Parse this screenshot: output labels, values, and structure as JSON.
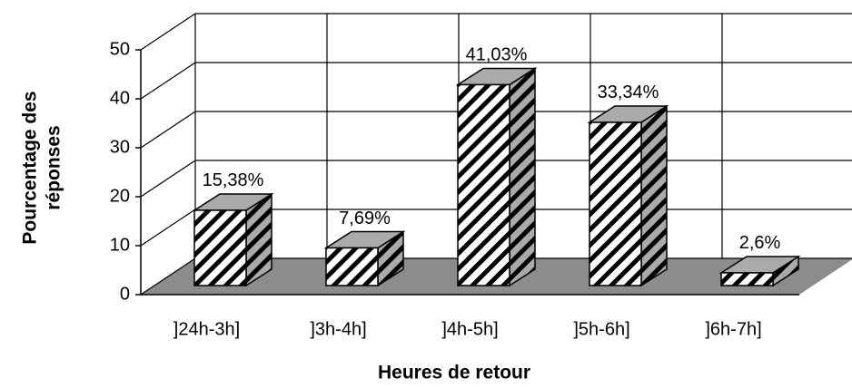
{
  "chart_data": {
    "type": "bar3d",
    "categories": [
      "]24h-3h]",
      "]3h-4h]",
      "]4h-5h]",
      "]5h-6h]",
      "]6h-7h]"
    ],
    "values": [
      15.38,
      7.69,
      41.03,
      33.34,
      2.6
    ],
    "value_labels": [
      "15,38%",
      "7,69%",
      "41,03%",
      "33,34%",
      "2,6%"
    ],
    "ylim": [
      0,
      50
    ],
    "yticks": [
      0,
      10,
      20,
      30,
      40,
      50
    ],
    "y_label": [
      "Pourcentage des",
      "réponses"
    ],
    "x_label": "Heures de retour",
    "grid": true,
    "color": "#000000",
    "floor_color": "#8c8c8c"
  }
}
